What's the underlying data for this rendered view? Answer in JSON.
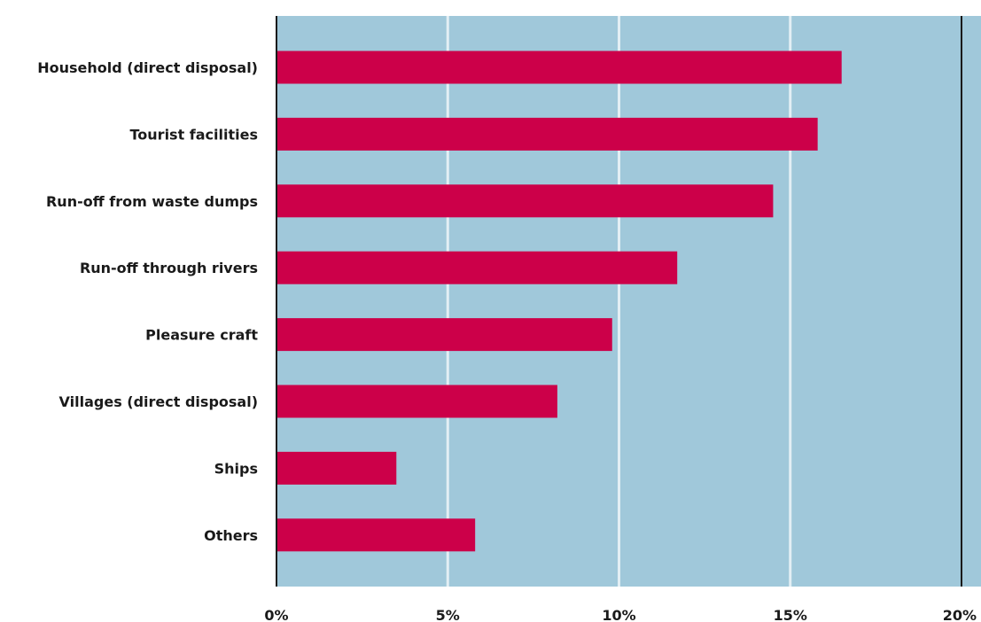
{
  "chart_data": {
    "type": "bar",
    "orientation": "horizontal",
    "categories": [
      "Household (direct disposal)",
      "Tourist facilities",
      "Run-off from waste dumps",
      "Run-off through rivers",
      "Pleasure craft",
      "Villages (direct disposal)",
      "Ships",
      "Others"
    ],
    "values": [
      16.5,
      15.8,
      14.5,
      11.7,
      9.8,
      8.2,
      3.5,
      5.8
    ],
    "unit": "%",
    "xlim": [
      0,
      20
    ],
    "xticks": [
      0,
      5,
      10,
      15,
      20
    ],
    "xtick_labels": [
      "0%",
      "5%",
      "10%",
      "15%",
      "20%"
    ],
    "grid": true,
    "title": "",
    "xlabel": "",
    "ylabel": ""
  },
  "colors": {
    "plot_background": "#a0c8da",
    "bar": "#cc0049",
    "gridline": "#e3eff4",
    "axis_line": "#1a1a1a",
    "text": "#1a1a1a"
  }
}
